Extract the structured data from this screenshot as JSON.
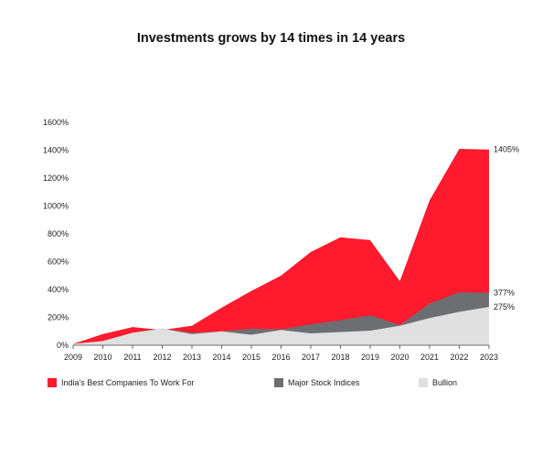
{
  "chart_data": {
    "type": "area",
    "title": "Investments grows by 14 times in 14 years",
    "x": [
      "2009",
      "2010",
      "2011",
      "2012",
      "2013",
      "2014",
      "2015",
      "2016",
      "2017",
      "2018",
      "2019",
      "2020",
      "2021",
      "2022",
      "2023"
    ],
    "yticks": [
      "0%",
      "200%",
      "400%",
      "600%",
      "800%",
      "1000%",
      "1200%",
      "1400%",
      "1600%"
    ],
    "ylim": [
      0,
      1600
    ],
    "series": [
      {
        "name": "India's Best Companies To Work For",
        "color": "#ff1a2e",
        "values": [
          10,
          80,
          130,
          110,
          140,
          270,
          390,
          500,
          670,
          775,
          755,
          460,
          1040,
          1410,
          1405
        ]
      },
      {
        "name": "Major Stock Indices",
        "color": "#6d6e71",
        "values": [
          10,
          30,
          90,
          120,
          90,
          100,
          120,
          115,
          150,
          180,
          215,
          145,
          300,
          380,
          377
        ]
      },
      {
        "name": "Bullion",
        "color": "#e0e0e0",
        "values": [
          10,
          30,
          90,
          120,
          80,
          100,
          75,
          110,
          85,
          95,
          105,
          140,
          195,
          240,
          275
        ]
      }
    ],
    "end_labels": [
      "1405%",
      "377%",
      "275%"
    ],
    "legend_position": "bottom"
  }
}
